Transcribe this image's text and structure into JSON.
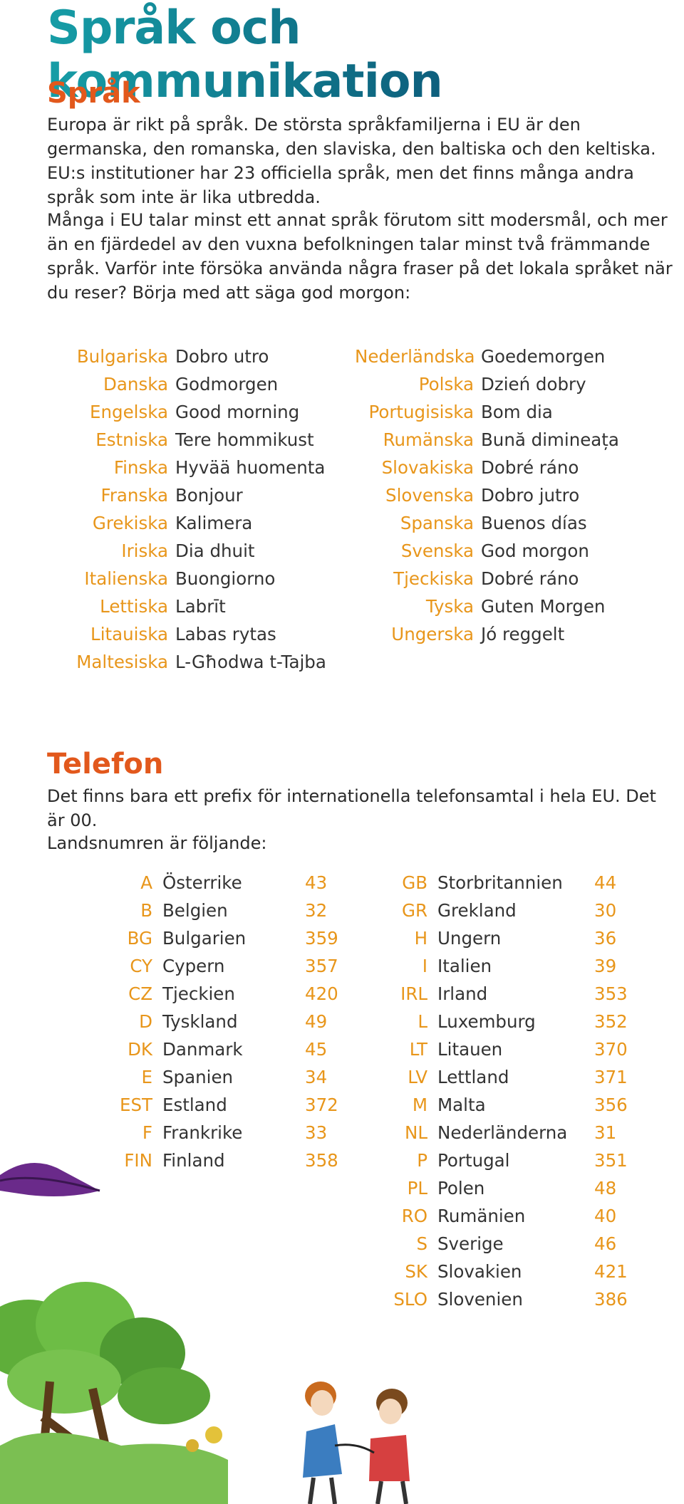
{
  "title": "Språk och kommunikation",
  "sprak": {
    "heading": "Språk",
    "para1": "Europa är rikt på språk. De största språkfamiljerna i EU är den germanska, den romanska, den slaviska, den baltiska och den keltiska. EU:s institutioner har 23 officiella språk, men det finns många andra språk som inte är lika utbredda.",
    "para2": "Många i EU talar minst ett annat språk förutom sitt modersmål, och mer än en fjärdedel av den vuxna befolkningen talar minst två främmande språk. Varför inte försöka använda några fraser på det lokala språket när du reser? Börja med att säga god morgon:",
    "languages_left": [
      {
        "lang": "Bulgariska",
        "greeting": "Dobro utro"
      },
      {
        "lang": "Danska",
        "greeting": "Godmorgen"
      },
      {
        "lang": "Engelska",
        "greeting": "Good morning"
      },
      {
        "lang": "Estniska",
        "greeting": "Tere hommikust"
      },
      {
        "lang": "Finska",
        "greeting": "Hyvää huomenta"
      },
      {
        "lang": "Franska",
        "greeting": "Bonjour"
      },
      {
        "lang": "Grekiska",
        "greeting": "Kalimera"
      },
      {
        "lang": "Iriska",
        "greeting": "Dia dhuit"
      },
      {
        "lang": "Italienska",
        "greeting": "Buongiorno"
      },
      {
        "lang": "Lettiska",
        "greeting": "Labrīt"
      },
      {
        "lang": "Litauiska",
        "greeting": "Labas rytas"
      },
      {
        "lang": "Maltesiska",
        "greeting": "L-Għodwa t-Tajba"
      }
    ],
    "languages_right": [
      {
        "lang": "Nederländska",
        "greeting": "Goedemorgen"
      },
      {
        "lang": "Polska",
        "greeting": "Dzień dobry"
      },
      {
        "lang": "Portugisiska",
        "greeting": "Bom dia"
      },
      {
        "lang": "Rumänska",
        "greeting": "Bună dimineața"
      },
      {
        "lang": "Slovakiska",
        "greeting": "Dobré ráno"
      },
      {
        "lang": "Slovenska",
        "greeting": "Dobro jutro"
      },
      {
        "lang": "Spanska",
        "greeting": "Buenos días"
      },
      {
        "lang": "Svenska",
        "greeting": "God morgon"
      },
      {
        "lang": "Tjeckiska",
        "greeting": "Dobré ráno"
      },
      {
        "lang": "Tyska",
        "greeting": "Guten Morgen"
      },
      {
        "lang": "Ungerska",
        "greeting": "Jó reggelt"
      }
    ]
  },
  "telefon": {
    "heading": "Telefon",
    "para1": "Det finns bara ett prefix för internationella telefonsamtal i hela EU. Det är 00.",
    "para2": "Landsnumren är följande:",
    "countries_left": [
      {
        "code": "A",
        "country": "Österrike",
        "number": "43"
      },
      {
        "code": "B",
        "country": "Belgien",
        "number": "32"
      },
      {
        "code": "BG",
        "country": "Bulgarien",
        "number": "359"
      },
      {
        "code": "CY",
        "country": "Cypern",
        "number": "357"
      },
      {
        "code": "CZ",
        "country": "Tjeckien",
        "number": "420"
      },
      {
        "code": "D",
        "country": "Tyskland",
        "number": "49"
      },
      {
        "code": "DK",
        "country": "Danmark",
        "number": "45"
      },
      {
        "code": "E",
        "country": "Spanien",
        "number": "34"
      },
      {
        "code": "EST",
        "country": "Estland",
        "number": "372"
      },
      {
        "code": "F",
        "country": "Frankrike",
        "number": "33"
      },
      {
        "code": "FIN",
        "country": "Finland",
        "number": "358"
      }
    ],
    "countries_right": [
      {
        "code": "GB",
        "country": "Storbritannien",
        "number": "44"
      },
      {
        "code": "GR",
        "country": "Grekland",
        "number": "30"
      },
      {
        "code": "H",
        "country": "Ungern",
        "number": "36"
      },
      {
        "code": "I",
        "country": "Italien",
        "number": "39"
      },
      {
        "code": "IRL",
        "country": "Irland",
        "number": "353"
      },
      {
        "code": "L",
        "country": "Luxemburg",
        "number": "352"
      },
      {
        "code": "LT",
        "country": "Litauen",
        "number": "370"
      },
      {
        "code": "LV",
        "country": "Lettland",
        "number": "371"
      },
      {
        "code": "M",
        "country": "Malta",
        "number": "356"
      },
      {
        "code": "NL",
        "country": "Nederländerna",
        "number": "31"
      },
      {
        "code": "P",
        "country": "Portugal",
        "number": "351"
      },
      {
        "code": "PL",
        "country": "Polen",
        "number": "48"
      },
      {
        "code": "RO",
        "country": "Rumänien",
        "number": "40"
      },
      {
        "code": "S",
        "country": "Sverige",
        "number": "46"
      },
      {
        "code": "SK",
        "country": "Slovakien",
        "number": "421"
      },
      {
        "code": "SLO",
        "country": "Slovenien",
        "number": "386"
      }
    ]
  },
  "colors": {
    "heading_orange": "#e2581c",
    "label_orange": "#e8961b",
    "title_teal": "#169da6",
    "title_navy": "#0c3a68"
  }
}
